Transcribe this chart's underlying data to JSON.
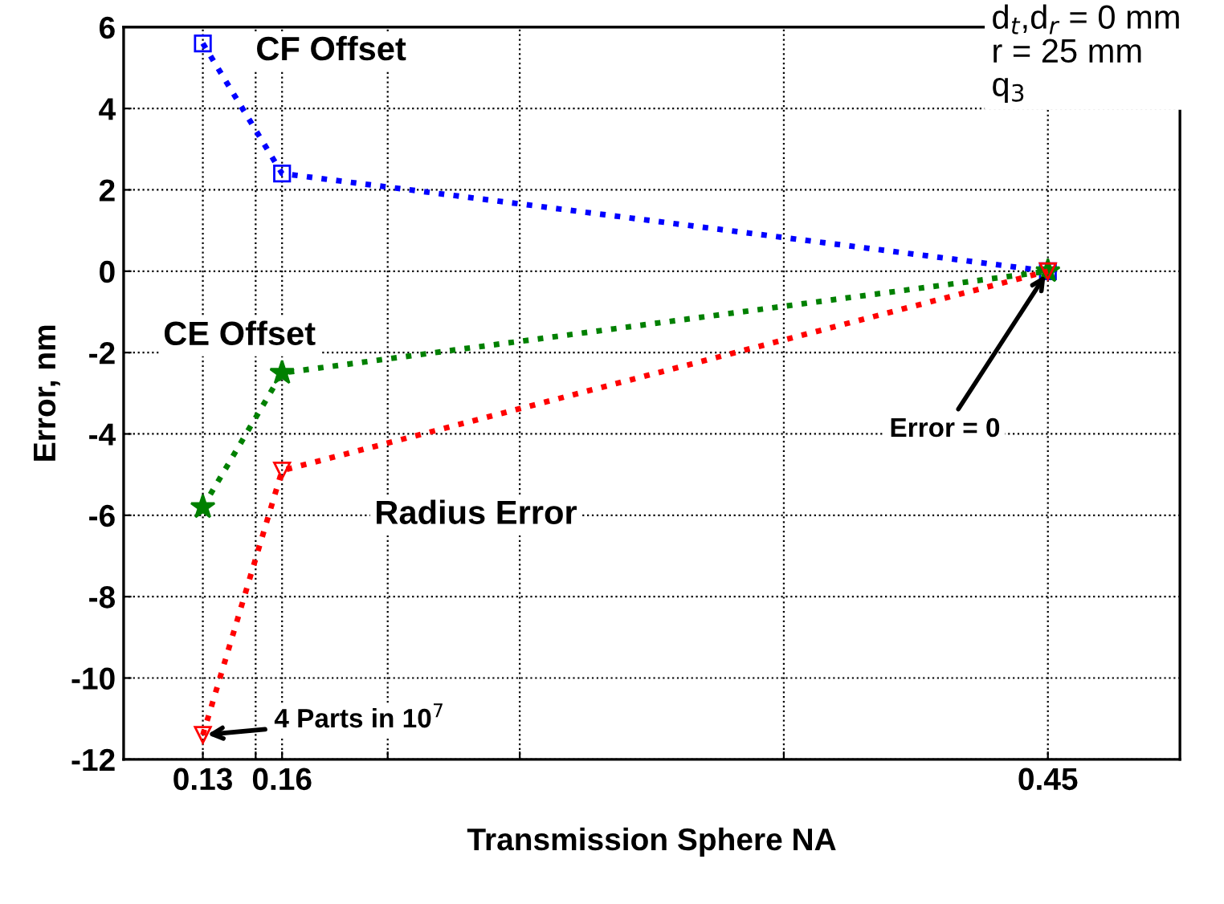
{
  "chart_data": {
    "type": "line",
    "xlabel": "Transmission Sphere NA",
    "ylabel": "Error, nm",
    "xlim": [
      0.1,
      0.5
    ],
    "ylim": [
      -12,
      6
    ],
    "xticks": [
      0.13,
      {
        "value": 0.15,
        "label": null
      },
      0.16,
      {
        "value": 0.2,
        "label": null
      },
      {
        "value": 0.25,
        "label": null
      },
      {
        "value": 0.35,
        "label": null
      },
      0.45
    ],
    "yticks": [
      -12,
      -10,
      -8,
      -6,
      -4,
      -2,
      0,
      2,
      4,
      6
    ],
    "grid": true,
    "line_style": "dotted",
    "legend": false,
    "series": [
      {
        "name": "CF Offset",
        "color": "#0000ff",
        "marker": "square",
        "x": [
          0.13,
          0.16,
          0.45
        ],
        "values": [
          5.6,
          2.4,
          0
        ]
      },
      {
        "name": "CE Offset",
        "color": "#008000",
        "marker": "star",
        "x": [
          0.13,
          0.16,
          0.45
        ],
        "values": [
          -5.8,
          -2.5,
          0
        ]
      },
      {
        "name": "Radius Error",
        "color": "#ff0000",
        "marker": "triangle",
        "x": [
          0.13,
          0.16,
          0.45
        ],
        "values": [
          -11.4,
          -4.9,
          0
        ]
      }
    ],
    "annotations": [
      {
        "text": "Error = 0",
        "x": 0.45,
        "y": 0
      },
      {
        "text": "4 Parts in 10$^{7}$",
        "x": 0.13,
        "y": -11.4
      },
      "d$_{t}$,d$_{r}$ = 0 mm\nr = 25 mm\nq$_{3}$"
    ]
  }
}
